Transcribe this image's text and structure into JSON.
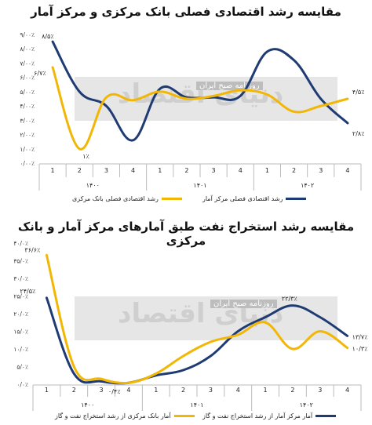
{
  "chart_data": [
    {
      "type": "line",
      "title": "مقایسه رشد اقتصادی فصلی بانک مرکزی و مرکز آمار",
      "categories": [
        "1",
        "2",
        "3",
        "4",
        "1",
        "2",
        "3",
        "4",
        "1",
        "2",
        "3",
        "4"
      ],
      "groups": [
        {
          "label": "۱۴۰۰",
          "from": 0,
          "to": 3
        },
        {
          "label": "۱۴۰۱",
          "from": 4,
          "to": 7
        },
        {
          "label": "۱۴۰۲",
          "from": 8,
          "to": 11
        }
      ],
      "ylim": [
        0,
        9
      ],
      "yticks": [
        "۰/۰۰٪",
        "۱/۰۰٪",
        "۲/۰۰٪",
        "۳/۰۰٪",
        "۴/۰۰٪",
        "۵/۰۰٪",
        "۶/۰۰٪",
        "۷/۰۰٪",
        "۸/۰۰٪",
        "۹/۰۰٪"
      ],
      "series": [
        {
          "name": "رشد اقتصادی فصلی مرکز آمار",
          "color": "#1f3b73",
          "values": [
            8.5,
            5.0,
            4.0,
            1.6,
            5.2,
            4.6,
            4.6,
            4.7,
            7.8,
            7.2,
            4.5,
            2.8
          ]
        },
        {
          "name": "رشد اقتصادی فصلی بانک مرکزی",
          "color": "#f2b705",
          "values": [
            6.7,
            1.0,
            4.6,
            4.4,
            5.0,
            4.5,
            4.7,
            5.1,
            4.8,
            3.6,
            4.0,
            4.5
          ]
        }
      ],
      "annotations": [
        {
          "text": "۸/۵٪",
          "series": 0,
          "index": 0
        },
        {
          "text": "۶/۷٪",
          "series": 1,
          "index": 0
        },
        {
          "text": "۱٪",
          "series": 1,
          "index": 1
        },
        {
          "text": "۴/۵٪",
          "series": 1,
          "index": 11
        },
        {
          "text": "۲/۸٪",
          "series": 0,
          "index": 11
        }
      ]
    },
    {
      "type": "line",
      "title": "مقایسه رشد استخراج نفت طبق آمارهای مرکز آمار و بانک مرکزی",
      "categories": [
        "1",
        "2",
        "3",
        "4",
        "1",
        "2",
        "3",
        "4",
        "1",
        "2",
        "3",
        "4"
      ],
      "groups": [
        {
          "label": "۱۴۰۰",
          "from": 0,
          "to": 3
        },
        {
          "label": "۱۴۰۱",
          "from": 4,
          "to": 7
        },
        {
          "label": "۱۴۰۲",
          "from": 8,
          "to": 11
        }
      ],
      "ylim": [
        0,
        40
      ],
      "yticks": [
        "۰/۰٪",
        "۵/۰٪",
        "۱۰/۰٪",
        "۱۵/۰٪",
        "۲۰/۰٪",
        "۲۵/۰٪",
        "۳۰/۰٪",
        "۳۵/۰٪",
        "۴۰/۰٪"
      ],
      "series": [
        {
          "name": "آمار مرکز آمار از رشد استخراج نفت و گاز",
          "color": "#1f3b73",
          "values": [
            24.5,
            3.0,
            0.8,
            0.4,
            2.5,
            4.0,
            8.0,
            15.0,
            19.0,
            22.3,
            19.0,
            13.7
          ]
        },
        {
          "name": "آمار بانک مرکزی از رشد استخراج نفت و گاز",
          "color": "#f2b705",
          "values": [
            36.6,
            5.0,
            1.5,
            0.4,
            3.0,
            8.0,
            12.0,
            14.0,
            17.5,
            10.0,
            15.0,
            10.3
          ]
        }
      ],
      "annotations": [
        {
          "text": "۳۶/۶٪",
          "series": 1,
          "index": 0
        },
        {
          "text": "۲۴/۵٪",
          "series": 0,
          "index": 0
        },
        {
          "text": "۰/۴٪",
          "series": 0,
          "index": 3
        },
        {
          "text": "۲۲/۳٪",
          "series": 0,
          "index": 9
        },
        {
          "text": "۱۳/۷٪",
          "series": 0,
          "index": 11
        },
        {
          "text": "۱۰/۳٪",
          "series": 1,
          "index": 11
        }
      ]
    }
  ],
  "watermark": {
    "text": "دنیای اقتصاد",
    "subtext": "روزنامه صبح ایران"
  }
}
